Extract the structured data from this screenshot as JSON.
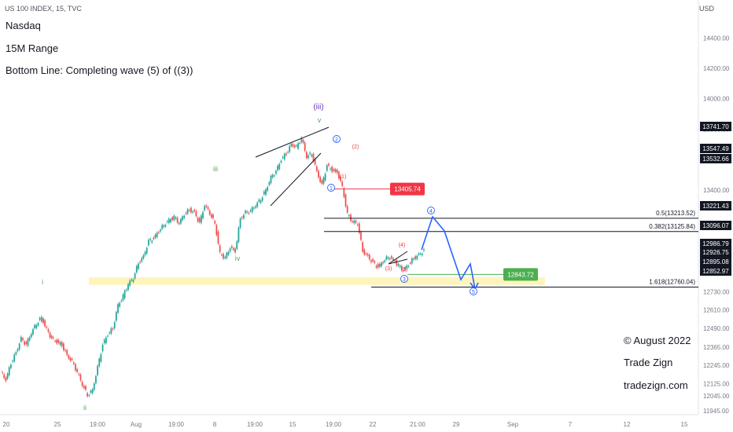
{
  "header": {
    "symbol": "US 100 INDEX, 15, TVC",
    "currency": "USD",
    "title_lines": [
      "Nasdaq",
      "15M Range",
      "Bottom Line: Completing wave (5) of ((3))"
    ]
  },
  "footer": {
    "copyright": "© August 2022",
    "brand": "Trade Zign",
    "website": "tradezign.com"
  },
  "chart_data": {
    "type": "line",
    "title": "Nasdaq",
    "subtitle": "15M Range",
    "y_axis": {
      "ylim": [
        11920,
        14650
      ],
      "ticks": [
        14400,
        14200,
        14000,
        13800,
        13400,
        12730,
        12610,
        12490,
        12365,
        12245,
        12125,
        12045,
        11945
      ],
      "highlight_labels": [
        {
          "value": "13741.70",
          "style": "dark"
        },
        {
          "value": "13547.49",
          "style": "dark"
        },
        {
          "value": "13532.66",
          "style": "dark"
        },
        {
          "value": "13221.43",
          "style": "dark"
        },
        {
          "value": "13096.07",
          "style": "dark"
        },
        {
          "value": "12986.79",
          "style": "dark"
        },
        {
          "value": "12926.75",
          "style": "dark"
        },
        {
          "value": "12895.08",
          "style": "dark"
        },
        {
          "value": "12852.97",
          "style": "dark"
        }
      ]
    },
    "x_axis": {
      "labels": [
        "20",
        "25",
        "19:00",
        "Aug",
        "19:00",
        "8",
        "19:00",
        "15",
        "19:00",
        "22",
        "21:00",
        "29",
        "Sep",
        "7",
        "12",
        "15"
      ]
    },
    "series": [
      {
        "points": [
          12200,
          12150,
          12260,
          12330,
          12420,
          12380,
          12460,
          12520,
          12560,
          12480,
          12420,
          12400,
          12380,
          12310,
          12270,
          12200,
          12120,
          12050,
          12080,
          12230,
          12380,
          12450,
          12490,
          12640,
          12700,
          12780,
          12820,
          12920,
          12960,
          13060,
          13080,
          13130,
          13170,
          13200,
          13220,
          13180,
          13240,
          13270,
          13250,
          13180,
          13300,
          13250,
          13180,
          12980,
          12950,
          13020,
          13000,
          13210,
          13250,
          13260,
          13300,
          13340,
          13400,
          13480,
          13520,
          13600,
          13640,
          13700,
          13680,
          13740,
          13620,
          13640,
          13520,
          13430,
          13560,
          13530,
          13520,
          13420,
          13240,
          13190,
          13180,
          13000,
          12960,
          12920,
          12890,
          12930,
          12960,
          12940,
          12900,
          12870,
          12910,
          12950,
          12970,
          13000
        ]
      }
    ],
    "levels": [
      {
        "label": "0.5(13213.52)",
        "value": 13213.52
      },
      {
        "label": "0.382(13125.84)",
        "value": 13125.84
      },
      {
        "label": "1.618(12760.04)",
        "value": 12760.04
      }
    ],
    "price_boxes": [
      {
        "label": "13405.74",
        "value": 13405.74,
        "color": "#f23645"
      },
      {
        "label": "12843.72",
        "value": 12843.72,
        "color": "#4caf50"
      }
    ],
    "wave_labels": [
      {
        "text": "i",
        "color": "#4caf50"
      },
      {
        "text": "ii",
        "color": "#4caf50"
      },
      {
        "text": "iii",
        "color": "#4caf50"
      },
      {
        "text": "iv",
        "color": "#4caf50"
      },
      {
        "text": "v",
        "color": "#4caf50"
      },
      {
        "text": "(iii)",
        "color": "#673ab7"
      },
      {
        "text": "1",
        "color": "#2962ff"
      },
      {
        "text": "2",
        "color": "#2962ff"
      },
      {
        "text": "3",
        "color": "#2962ff"
      },
      {
        "text": "4",
        "color": "#2962ff"
      },
      {
        "text": "5",
        "color": "#2962ff"
      },
      {
        "text": "(1)",
        "color": "#f23645"
      },
      {
        "text": "(2)",
        "color": "#f23645"
      },
      {
        "text": "(3)",
        "color": "#f23645"
      },
      {
        "text": "(4)",
        "color": "#f23645"
      },
      {
        "text": "(5)",
        "color": "#f23645"
      }
    ],
    "projection": {
      "color": "#2962ff"
    },
    "support_zone": {
      "color": "#fff3b0"
    }
  }
}
